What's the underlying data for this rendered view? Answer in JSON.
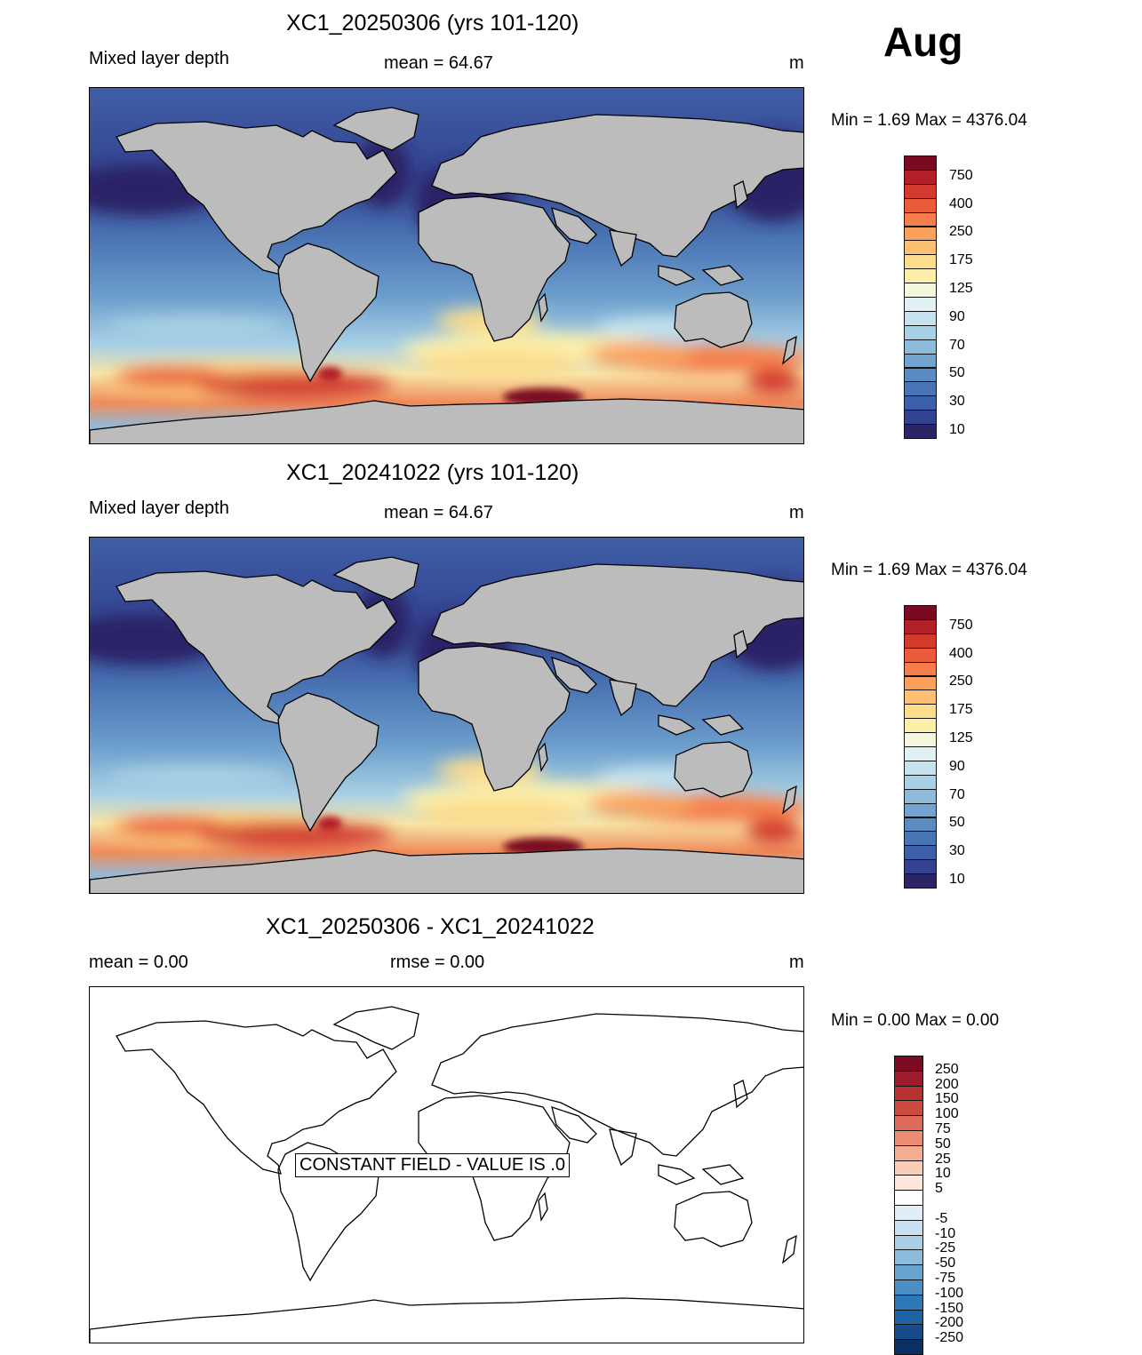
{
  "month": "Aug",
  "panels": [
    {
      "title": "XC1_20250306 (yrs 101-120)",
      "left_label": "Mixed layer depth",
      "center_label": "mean =  64.67",
      "units": "m",
      "minmax": "Min =    1.69 Max = 4376.04",
      "colorbar": {
        "colors": [
          "#2b2466",
          "#33428f",
          "#3d5ea8",
          "#4a75b5",
          "#5b8cc1",
          "#73a3cf",
          "#8dbbdc",
          "#a9d1e6",
          "#c5e3ee",
          "#e1f1f4",
          "#f4f7dc",
          "#fbefaa",
          "#fddc8c",
          "#fdc070",
          "#fca15c",
          "#f77e4c",
          "#ea5b3c",
          "#d23a2e",
          "#b31f28",
          "#7a0a22"
        ],
        "labels": [
          "10",
          "30",
          "50",
          "70",
          "90",
          "125",
          "175",
          "250",
          "400",
          "750"
        ]
      }
    },
    {
      "title": "XC1_20241022 (yrs 101-120)",
      "left_label": "Mixed layer depth",
      "center_label": "mean =  64.67",
      "units": "m",
      "minmax": "Min =    1.69 Max = 4376.04",
      "colorbar": {
        "colors": [
          "#2b2466",
          "#33428f",
          "#3d5ea8",
          "#4a75b5",
          "#5b8cc1",
          "#73a3cf",
          "#8dbbdc",
          "#a9d1e6",
          "#c5e3ee",
          "#e1f1f4",
          "#f4f7dc",
          "#fbefaa",
          "#fddc8c",
          "#fdc070",
          "#fca15c",
          "#f77e4c",
          "#ea5b3c",
          "#d23a2e",
          "#b31f28",
          "#7a0a22"
        ],
        "labels": [
          "10",
          "30",
          "50",
          "70",
          "90",
          "125",
          "175",
          "250",
          "400",
          "750"
        ]
      }
    },
    {
      "title": "XC1_20250306 - XC1_20241022",
      "left_label": "mean =   0.00",
      "center_label": "rmse =   0.00",
      "units": "m",
      "minmax": "Min =   0.00 Max =   0.00",
      "constant_label": "CONSTANT FIELD - VALUE IS .0",
      "colorbar": {
        "colors": [
          "#0c2f63",
          "#164c8c",
          "#1f63a7",
          "#2d78b8",
          "#4a8fc5",
          "#6aa5d1",
          "#8cbbdc",
          "#abcfe6",
          "#c8e0ef",
          "#e2eef6",
          "#ffffff",
          "#fde6dc",
          "#fbcdb7",
          "#f5ad92",
          "#ec8c73",
          "#de6b57",
          "#cc4b41",
          "#b83131",
          "#9e1b2b",
          "#7d0a23"
        ],
        "labels": [
          "-250",
          "-200",
          "-150",
          "-100",
          "-75",
          "-50",
          "-25",
          "-10",
          "-5",
          "5",
          "10",
          "25",
          "50",
          "75",
          "100",
          "150",
          "200",
          "250"
        ]
      }
    }
  ]
}
